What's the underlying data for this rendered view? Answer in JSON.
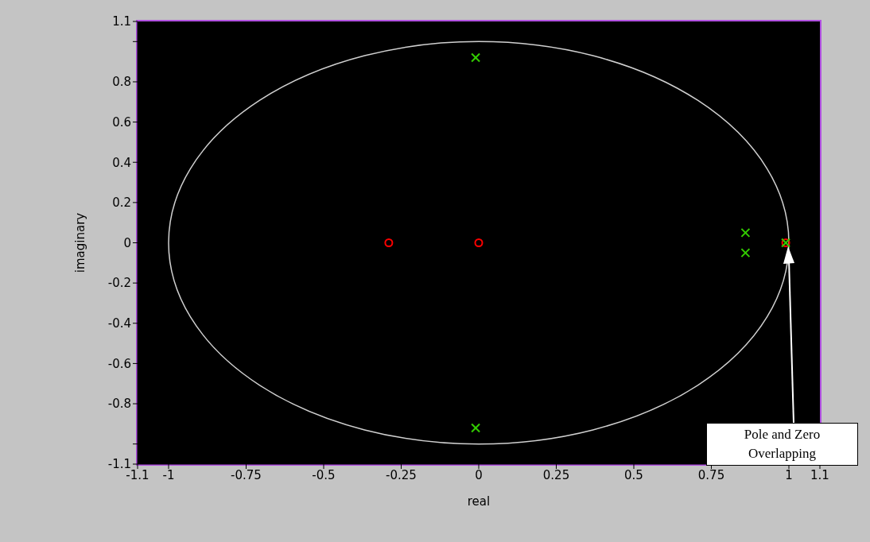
{
  "chart_data": {
    "type": "scatter",
    "xlabel": "real",
    "ylabel": "imaginary",
    "xlim": [
      -1.1,
      1.1
    ],
    "ylim": [
      -1.1,
      1.1
    ],
    "xticks": [
      -1.1,
      -1,
      -0.75,
      -0.5,
      -0.25,
      0,
      0.25,
      0.5,
      0.75,
      1,
      1.1
    ],
    "yticks": [
      -1.1,
      {
        "value": -1,
        "label": null
      },
      -0.8,
      -0.6,
      -0.4,
      -0.2,
      0,
      0.2,
      0.4,
      0.6,
      0.8,
      {
        "value": 1,
        "label": null
      },
      1.1
    ],
    "series": [
      {
        "type": "scatter",
        "marker": "circle",
        "color": "#ff0000",
        "x": [
          -0.29,
          0,
          0.99
        ],
        "values": [
          0,
          0,
          0
        ]
      },
      {
        "type": "scatter",
        "marker": "cross",
        "color": "#33cc00",
        "x": [
          -0.01,
          -0.01,
          0.86,
          0.86,
          0.99
        ],
        "values": [
          0.92,
          -0.92,
          0.05,
          -0.05,
          0
        ]
      }
    ],
    "annotations": [
      "Pole and Zero Overlapping"
    ]
  }
}
